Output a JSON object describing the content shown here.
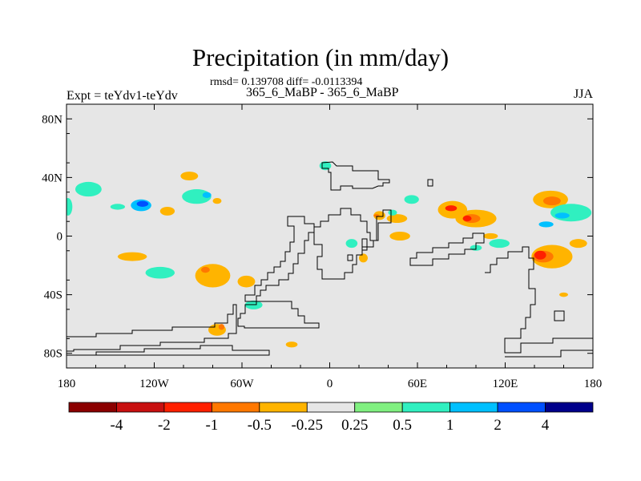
{
  "chart_data": {
    "type": "contour-map",
    "title": "Precipitation (in mm/day)",
    "stats": "rmsd= 0.139708 diff= -0.0113394",
    "subtitle": "365_6_MaBP - 365_6_MaBP",
    "left_label": "Expt = teYdv1-teYdv",
    "right_label": "JJA",
    "xlim": [
      -180,
      180
    ],
    "ylim": [
      -90,
      90
    ],
    "x_ticks": [
      {
        "value": -180,
        "label": "180"
      },
      {
        "value": -120,
        "label": "120W"
      },
      {
        "value": -60,
        "label": "60W"
      },
      {
        "value": 0,
        "label": "0"
      },
      {
        "value": 60,
        "label": "60E"
      },
      {
        "value": 120,
        "label": "120E"
      },
      {
        "value": 180,
        "label": "180"
      }
    ],
    "y_ticks": [
      {
        "value": 80,
        "label": "80N"
      },
      {
        "value": 40,
        "label": "40N"
      },
      {
        "value": 0,
        "label": "0"
      },
      {
        "value": -40,
        "label": "40S"
      },
      {
        "value": -80,
        "label": "80S"
      }
    ],
    "background_color": "#e6e6e6",
    "colorbar": {
      "colors": [
        "#8b0000",
        "#c81010",
        "#ff2000",
        "#ff7800",
        "#ffb400",
        "#e6e6e6",
        "#80f080",
        "#30f0c0",
        "#00c0ff",
        "#0050ff",
        "#00008b"
      ],
      "labels": [
        "-4",
        "-2",
        "-1",
        "-0.5",
        "-0.25",
        "0.25",
        "0.5",
        "1",
        "2",
        "4"
      ]
    },
    "anomaly_patches": [
      {
        "lon": -165,
        "lat": 32,
        "rlon": 9,
        "rlat": 5,
        "level": "0.5"
      },
      {
        "lon": -129,
        "lat": 21,
        "rlon": 7,
        "rlat": 4,
        "level": "1"
      },
      {
        "lon": -128,
        "lat": 22,
        "rlon": 4,
        "rlat": 2,
        "level": "2"
      },
      {
        "lon": -179,
        "lat": 20,
        "rlon": 3,
        "rlat": 6,
        "level": "0.5"
      },
      {
        "lon": -111,
        "lat": 17,
        "rlon": 5,
        "rlat": 3,
        "level": "-0.25"
      },
      {
        "lon": -96,
        "lat": 41,
        "rlon": 6,
        "rlat": 3,
        "level": "-0.25"
      },
      {
        "lon": -91,
        "lat": 27,
        "rlon": 10,
        "rlat": 5,
        "level": "0.5"
      },
      {
        "lon": -84,
        "lat": 28,
        "rlon": 3,
        "rlat": 2,
        "level": "1"
      },
      {
        "lon": -77,
        "lat": 24,
        "rlon": 3,
        "rlat": 2,
        "level": "-0.25"
      },
      {
        "lon": -145,
        "lat": 20,
        "rlon": 5,
        "rlat": 2,
        "level": "0.5"
      },
      {
        "lon": -135,
        "lat": -14,
        "rlon": 10,
        "rlat": 3,
        "level": "-0.25"
      },
      {
        "lon": -116,
        "lat": -25,
        "rlon": 10,
        "rlat": 4,
        "level": "0.5"
      },
      {
        "lon": -80,
        "lat": -27,
        "rlon": 12,
        "rlat": 8,
        "level": "-0.25"
      },
      {
        "lon": -85,
        "lat": -23,
        "rlon": 3,
        "rlat": 2,
        "level": "-0.5"
      },
      {
        "lon": -57,
        "lat": -31,
        "rlon": 6,
        "rlat": 4,
        "level": "-0.25"
      },
      {
        "lon": -52,
        "lat": -47,
        "rlon": 6,
        "rlat": 3,
        "level": "0.5"
      },
      {
        "lon": -77,
        "lat": -64,
        "rlon": 6,
        "rlat": 4,
        "level": "-0.25"
      },
      {
        "lon": -74,
        "lat": -62,
        "rlon": 2,
        "rlat": 2,
        "level": "-0.5"
      },
      {
        "lon": -26,
        "lat": -74,
        "rlon": 4,
        "rlat": 2,
        "level": "-0.25"
      },
      {
        "lon": -3,
        "lat": 48,
        "rlon": 4,
        "rlat": 3,
        "level": "0.5"
      },
      {
        "lon": 34,
        "lat": 14,
        "rlon": 4,
        "rlat": 3,
        "level": "-0.25"
      },
      {
        "lon": 32,
        "lat": 14,
        "rlon": 2,
        "rlat": 1,
        "level": "-0.5"
      },
      {
        "lon": 46,
        "lat": 12,
        "rlon": 7,
        "rlat": 3,
        "level": "-0.25"
      },
      {
        "lon": 56,
        "lat": 25,
        "rlon": 5,
        "rlat": 3,
        "level": "0.5"
      },
      {
        "lon": 43,
        "lat": 16,
        "rlon": 3,
        "rlat": 2,
        "level": "0.5"
      },
      {
        "lon": 48,
        "lat": 0,
        "rlon": 7,
        "rlat": 3,
        "level": "-0.25"
      },
      {
        "lon": 15,
        "lat": -5,
        "rlon": 4,
        "rlat": 3,
        "level": "0.5"
      },
      {
        "lon": 23,
        "lat": -15,
        "rlon": 3,
        "rlat": 3,
        "level": "-0.25"
      },
      {
        "lon": 84,
        "lat": 18,
        "rlon": 10,
        "rlat": 6,
        "level": "-0.25"
      },
      {
        "lon": 83,
        "lat": 19,
        "rlon": 4,
        "rlat": 2,
        "level": "-1"
      },
      {
        "lon": 100,
        "lat": 12,
        "rlon": 14,
        "rlat": 6,
        "level": "-0.25"
      },
      {
        "lon": 97,
        "lat": 12,
        "rlon": 6,
        "rlat": 3,
        "level": "-0.5"
      },
      {
        "lon": 94,
        "lat": 12,
        "rlon": 3,
        "rlat": 2,
        "level": "-1"
      },
      {
        "lon": 116,
        "lat": -5,
        "rlon": 7,
        "rlat": 3,
        "level": "0.5"
      },
      {
        "lon": 110,
        "lat": 0,
        "rlon": 5,
        "rlat": 2,
        "level": "-0.25"
      },
      {
        "lon": 100,
        "lat": -8,
        "rlon": 4,
        "rlat": 2,
        "level": "0.5"
      },
      {
        "lon": 151,
        "lat": 25,
        "rlon": 12,
        "rlat": 6,
        "level": "-0.25"
      },
      {
        "lon": 152,
        "lat": 24,
        "rlon": 6,
        "rlat": 3,
        "level": "-0.5"
      },
      {
        "lon": 165,
        "lat": 16,
        "rlon": 14,
        "rlat": 6,
        "level": "0.5"
      },
      {
        "lon": 159,
        "lat": 14,
        "rlon": 5,
        "rlat": 2,
        "level": "1"
      },
      {
        "lon": 148,
        "lat": 8,
        "rlon": 5,
        "rlat": 2,
        "level": "1"
      },
      {
        "lon": 152,
        "lat": -14,
        "rlon": 14,
        "rlat": 8,
        "level": "-0.25"
      },
      {
        "lon": 146,
        "lat": -14,
        "rlon": 7,
        "rlat": 4,
        "level": "-0.5"
      },
      {
        "lon": 144,
        "lat": -13,
        "rlon": 4,
        "rlat": 3,
        "level": "-1"
      },
      {
        "lon": 170,
        "lat": -5,
        "rlon": 6,
        "rlat": 3,
        "level": "-0.25"
      },
      {
        "lon": 160,
        "lat": -40,
        "rlon": 3,
        "rlat": 1.5,
        "level": "-0.25"
      }
    ]
  }
}
